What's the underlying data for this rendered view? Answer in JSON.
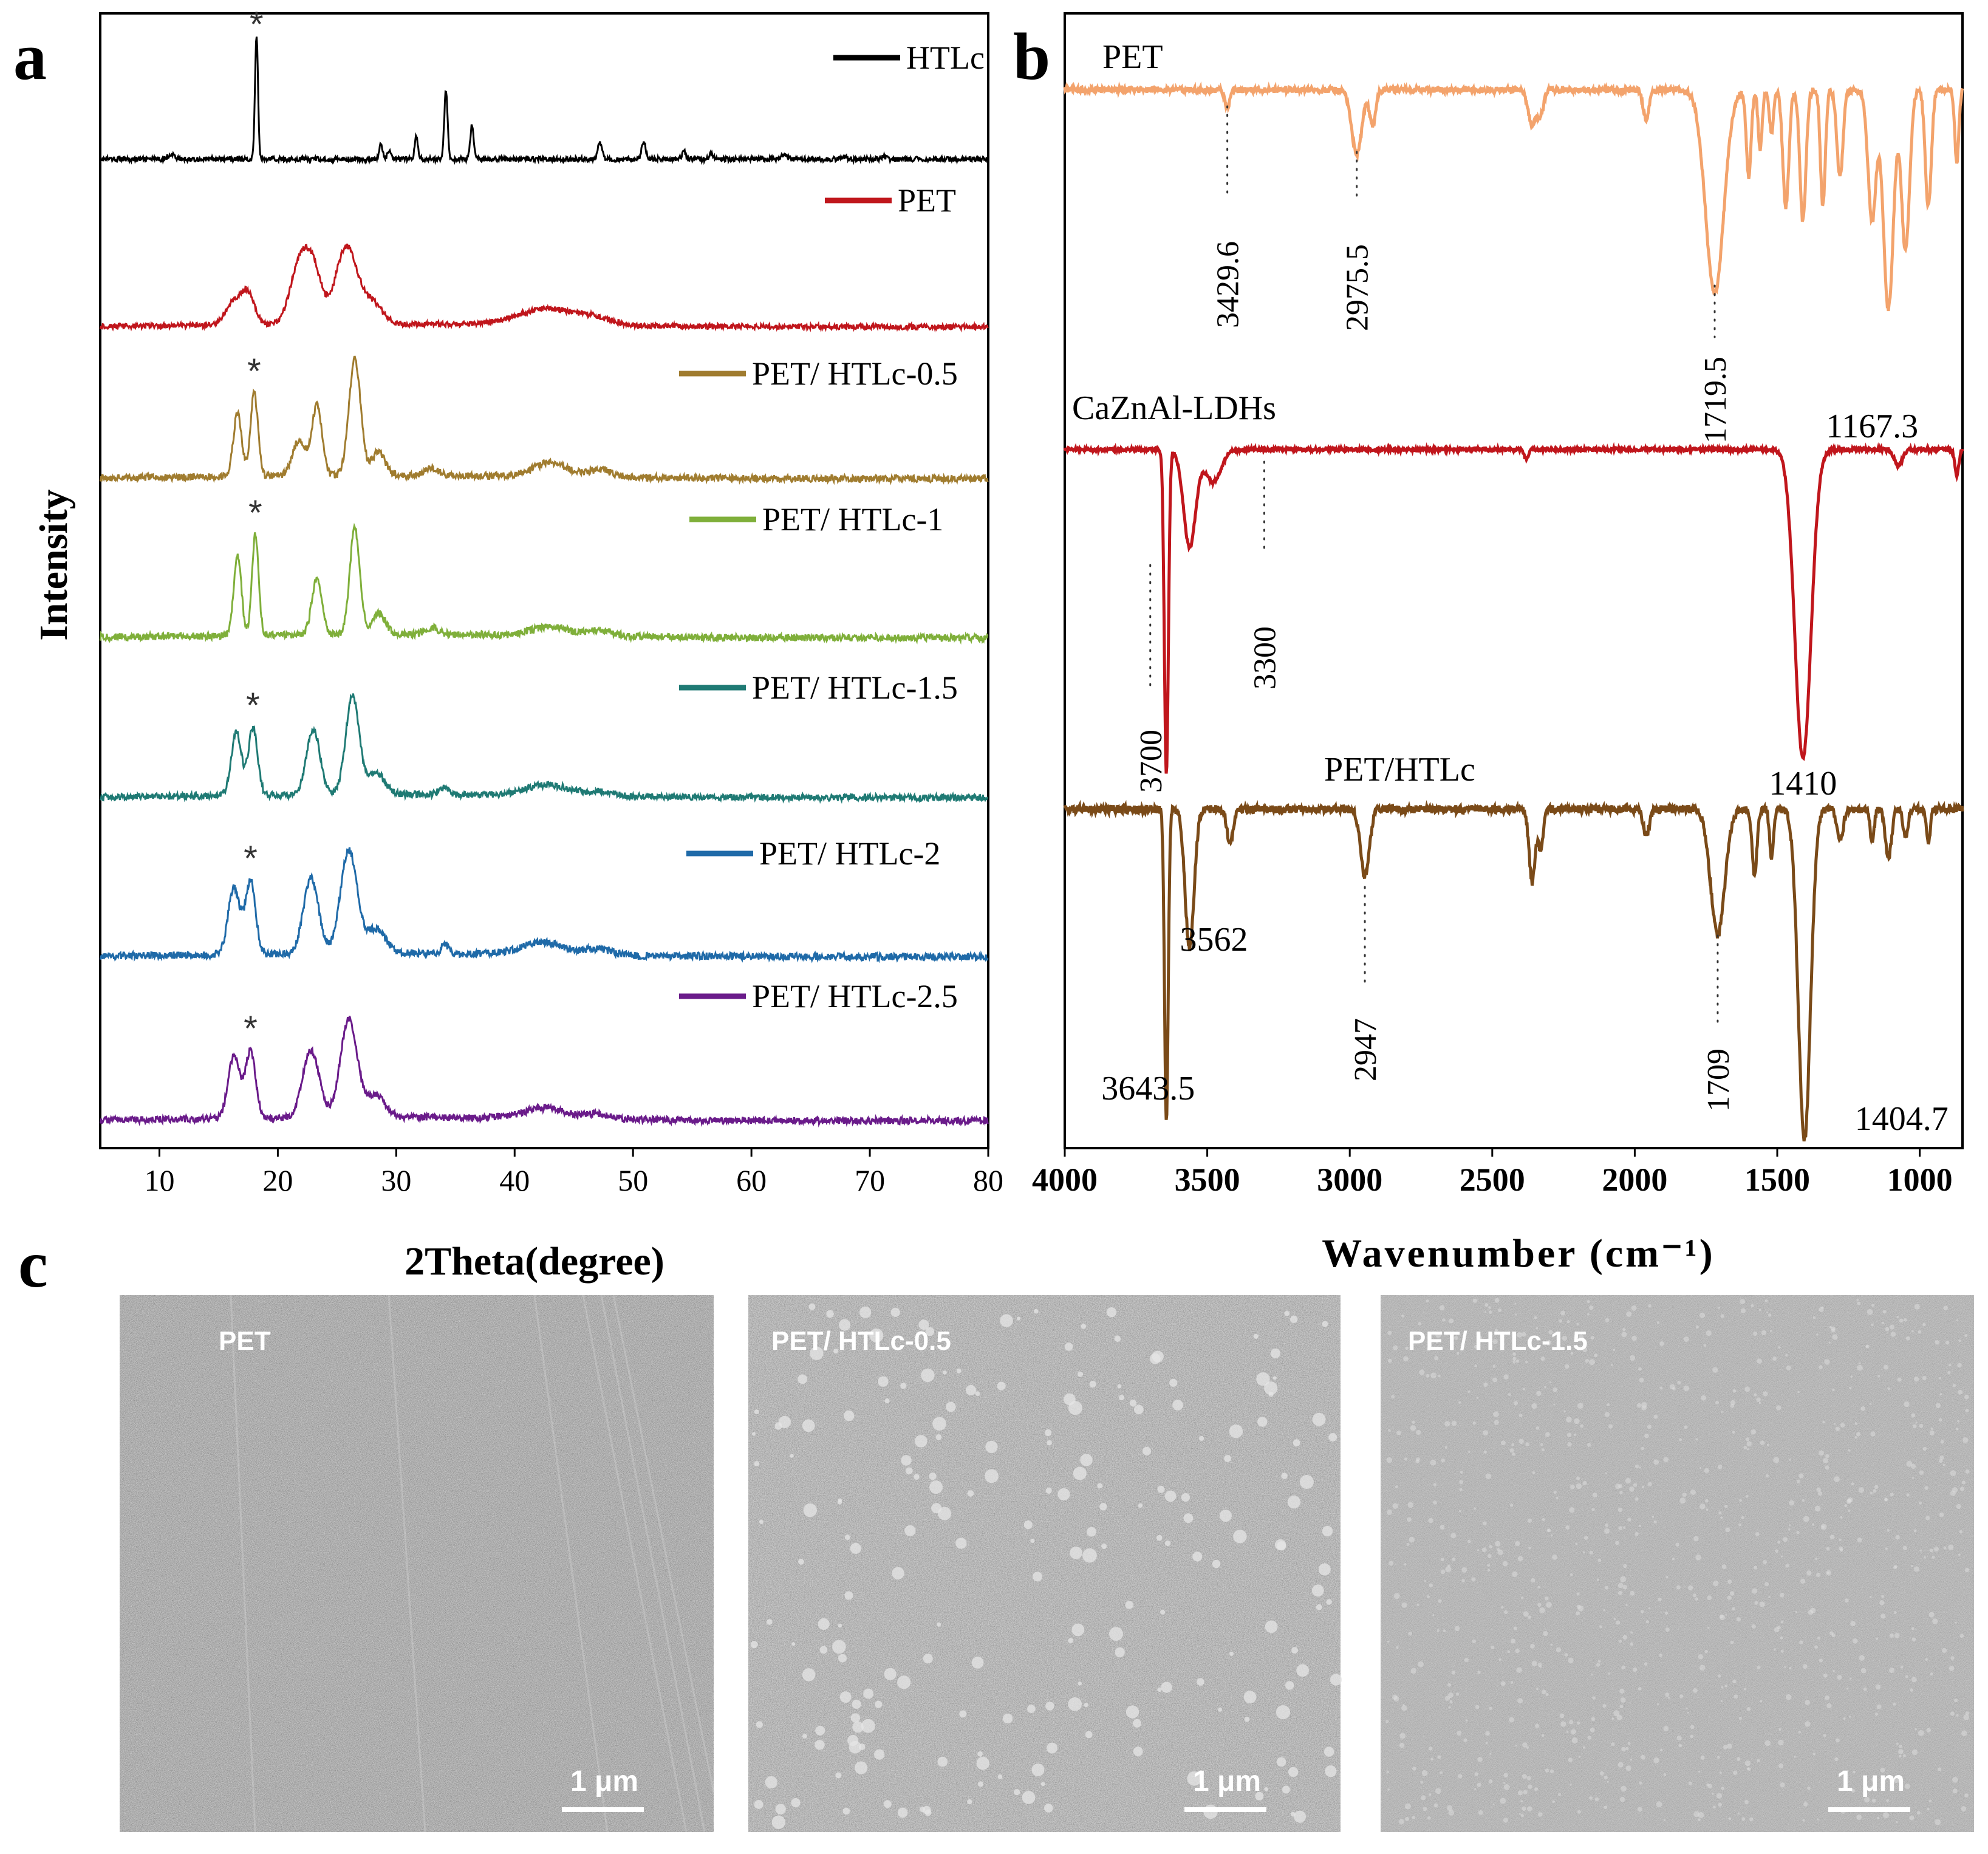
{
  "panel_letters": {
    "a": "a",
    "b": "b",
    "c": "c"
  },
  "chart_data": [
    {
      "type": "line",
      "panel": "a",
      "title": "",
      "xlabel": "2Theta(degree)",
      "ylabel": "Intensity",
      "xlim": [
        5,
        80
      ],
      "xticks": [
        10,
        20,
        30,
        40,
        50,
        60,
        70,
        80
      ],
      "series": [
        {
          "name": "HTLc",
          "color": "#000000",
          "baseline": 0,
          "amp": 1.6,
          "noise": 0.02,
          "peaks": [
            [
              11,
              0.04,
              0.4
            ],
            [
              18.2,
              1.0,
              0.18
            ],
            [
              28.7,
              0.12,
              0.2
            ],
            [
              29.4,
              0.07,
              0.2
            ],
            [
              31.7,
              0.18,
              0.2
            ],
            [
              34.2,
              0.55,
              0.2
            ],
            [
              36.4,
              0.28,
              0.2
            ],
            [
              47.2,
              0.14,
              0.25
            ],
            [
              50.9,
              0.14,
              0.25
            ],
            [
              54.3,
              0.06,
              0.25
            ],
            [
              56.6,
              0.05,
              0.25
            ],
            [
              62.8,
              0.04,
              0.3
            ],
            [
              67.8,
              0.03,
              0.3
            ],
            [
              71.2,
              0.02,
              0.3
            ]
          ],
          "markers": []
        },
        {
          "name": "PET",
          "color": "#c0161c",
          "baseline": 0,
          "amp": 1.0,
          "noise": 0.03,
          "peaks": [
            [
              16.3,
              0.25,
              1.0
            ],
            [
              17.5,
              0.32,
              0.8
            ],
            [
              21.8,
              0.62,
              1.1
            ],
            [
              23.0,
              0.55,
              1.0
            ],
            [
              25.8,
              0.85,
              1.3
            ],
            [
              28.0,
              0.22,
              1.2
            ],
            [
              42.8,
              0.18,
              3.5
            ],
            [
              47.0,
              0.06,
              2.0
            ]
          ],
          "markers": []
        },
        {
          "name": "PET/ HTLc-0.5",
          "color": "#a07c2f",
          "baseline": 0,
          "amp": 1.0,
          "noise": 0.03,
          "peaks": [
            [
              16.6,
              0.55,
              0.5
            ],
            [
              18.0,
              0.72,
              0.45
            ],
            [
              21.8,
              0.3,
              0.8
            ],
            [
              23.3,
              0.6,
              0.6
            ],
            [
              26.5,
              1.0,
              0.7
            ],
            [
              28.5,
              0.2,
              0.8
            ],
            [
              33.0,
              0.06,
              0.8
            ],
            [
              43.0,
              0.12,
              2.0
            ],
            [
              47.2,
              0.06,
              1.5
            ]
          ],
          "markers": [
            18.0
          ]
        },
        {
          "name": "PET/ HTLc-1",
          "color": "#7faf3a",
          "baseline": 0,
          "amp": 1.0,
          "noise": 0.03,
          "peaks": [
            [
              16.6,
              0.68,
              0.45
            ],
            [
              18.1,
              0.85,
              0.4
            ],
            [
              23.3,
              0.48,
              0.6
            ],
            [
              26.5,
              0.9,
              0.6
            ],
            [
              28.5,
              0.18,
              0.8
            ],
            [
              33.0,
              0.06,
              0.8
            ],
            [
              43.0,
              0.08,
              2.0
            ],
            [
              47.2,
              0.05,
              1.5
            ]
          ],
          "markers": [
            18.1
          ]
        },
        {
          "name": "PET/ HTLc-1.5",
          "color": "#1f7a74",
          "baseline": 0,
          "amp": 1.0,
          "noise": 0.03,
          "peaks": [
            [
              16.5,
              0.58,
              0.6
            ],
            [
              17.9,
              0.62,
              0.55
            ],
            [
              23.0,
              0.6,
              0.8
            ],
            [
              26.3,
              0.9,
              0.8
            ],
            [
              28.3,
              0.2,
              1.0
            ],
            [
              34.0,
              0.06,
              0.6
            ],
            [
              42.8,
              0.1,
              2.5
            ],
            [
              47.2,
              0.04,
              1.5
            ]
          ],
          "markers": [
            17.9
          ]
        },
        {
          "name": "PET/ HTLc-2",
          "color": "#1f6aa8",
          "baseline": 0,
          "amp": 1.0,
          "noise": 0.03,
          "peaks": [
            [
              16.3,
              0.55,
              0.7
            ],
            [
              17.7,
              0.6,
              0.6
            ],
            [
              22.8,
              0.62,
              0.9
            ],
            [
              26.0,
              0.85,
              1.0
            ],
            [
              28.3,
              0.2,
              1.1
            ],
            [
              34.1,
              0.08,
              0.4
            ],
            [
              42.4,
              0.1,
              2.5
            ],
            [
              47.1,
              0.05,
              1.5
            ]
          ],
          "markers": [
            17.7
          ]
        },
        {
          "name": "PET/ HTLc-2.5",
          "color": "#6a1b8a",
          "baseline": 0,
          "amp": 1.0,
          "noise": 0.03,
          "peaks": [
            [
              16.3,
              0.55,
              0.7
            ],
            [
              17.7,
              0.58,
              0.6
            ],
            [
              22.8,
              0.58,
              1.0
            ],
            [
              26.0,
              0.85,
              1.0
            ],
            [
              28.3,
              0.2,
              1.1
            ],
            [
              42.6,
              0.09,
              2.5
            ],
            [
              47.0,
              0.04,
              1.5
            ]
          ],
          "markers": [
            17.7
          ]
        }
      ],
      "marker_symbol": "*"
    },
    {
      "type": "line",
      "panel": "b",
      "title": "",
      "xlabel": "Wavenumber (cm⁻¹)",
      "ylabel": "",
      "xlim": [
        4000,
        850
      ],
      "xticks": [
        4000,
        3500,
        3000,
        2500,
        2000,
        1500,
        1000
      ],
      "series": [
        {
          "name": "PET",
          "color": "#f3a36c",
          "noise": 0.01,
          "bands": [
            [
              3429.6,
              0.06,
              12
            ],
            [
              2975.5,
              0.22,
              25
            ],
            [
              2920,
              0.12,
              15
            ],
            [
              2360,
              0.12,
              20
            ],
            [
              2330,
              0.08,
              15
            ],
            [
              1960,
              0.1,
              15
            ],
            [
              1719.5,
              0.7,
              45
            ],
            [
              1600,
              0.3,
              12
            ],
            [
              1560,
              0.2,
              10
            ],
            [
              1520,
              0.15,
              10
            ],
            [
              1470,
              0.4,
              15
            ],
            [
              1410,
              0.45,
              15
            ],
            [
              1340,
              0.4,
              12
            ],
            [
              1280,
              0.3,
              15
            ],
            [
              1167.3,
              0.45,
              20
            ],
            [
              1110,
              0.75,
              25
            ],
            [
              1050,
              0.55,
              20
            ],
            [
              970,
              0.4,
              15
            ],
            [
              870,
              0.25,
              10
            ]
          ]
        },
        {
          "name": "CaZnAl-LDHs",
          "color": "#c0161c",
          "noise": 0.005,
          "bands": [
            [
              3643.5,
              1.0,
              10
            ],
            [
              3562,
              0.3,
              30
            ],
            [
              3480,
              0.1,
              40
            ],
            [
              2380,
              0.03,
              10
            ],
            [
              1410,
              0.95,
              40
            ],
            [
              1075,
              0.05,
              20
            ],
            [
              870,
              0.08,
              10
            ]
          ]
        },
        {
          "name": "PET/HTLc",
          "color": "#7a4a18",
          "noise": 0.012,
          "bands": [
            [
              3643.5,
              0.95,
              9
            ],
            [
              3562,
              0.42,
              22
            ],
            [
              3420,
              0.1,
              15
            ],
            [
              2947,
              0.2,
              22
            ],
            [
              2360,
              0.22,
              15
            ],
            [
              2330,
              0.12,
              12
            ],
            [
              1960,
              0.08,
              15
            ],
            [
              1709,
              0.38,
              35
            ],
            [
              1580,
              0.2,
              12
            ],
            [
              1520,
              0.15,
              10
            ],
            [
              1404.7,
              1.0,
              30
            ],
            [
              1280,
              0.1,
              15
            ],
            [
              1167.3,
              0.1,
              10
            ],
            [
              1110,
              0.15,
              15
            ],
            [
              1050,
              0.08,
              12
            ],
            [
              970,
              0.1,
              10
            ]
          ]
        }
      ],
      "annotations": [
        {
          "series": 0,
          "label": "3429.6",
          "x": 3429.6
        },
        {
          "series": 0,
          "label": "2975.5",
          "x": 2975.5
        },
        {
          "series": 0,
          "label": "1719.5",
          "x": 1719.5
        },
        {
          "series": 0,
          "label": "1167.3",
          "x": 1167.3
        },
        {
          "series": 1,
          "label": "3700",
          "x": 3700
        },
        {
          "series": 1,
          "label": "3300",
          "x": 3300
        },
        {
          "series": 1,
          "label": "1410",
          "x": 1410
        },
        {
          "series": 2,
          "label": "3562",
          "x": 3562
        },
        {
          "series": 2,
          "label": "3643.5",
          "x": 3643.5
        },
        {
          "series": 2,
          "label": "2947",
          "x": 2947
        },
        {
          "series": 2,
          "label": "1709",
          "x": 1709
        },
        {
          "series": 2,
          "label": "1404.7",
          "x": 1404.7
        }
      ]
    }
  ],
  "panel_c": {
    "images": [
      {
        "label": "PET",
        "scale_bar": "1 μm"
      },
      {
        "label": "PET/ HTLc-0.5",
        "scale_bar": "1 μm"
      },
      {
        "label": "PET/ HTLc-1.5",
        "scale_bar": "1 μm"
      }
    ]
  }
}
